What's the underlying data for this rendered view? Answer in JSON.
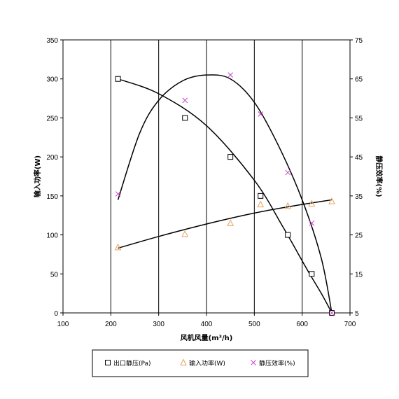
{
  "chart_data": {
    "type": "scatter",
    "x_axis": {
      "label": "风机风量(m³/h)",
      "min": 100,
      "max": 700,
      "ticks": [
        100,
        200,
        300,
        400,
        500,
        600,
        700
      ]
    },
    "y_left": {
      "label": "输入功率(W)",
      "min": 0,
      "max": 350,
      "ticks": [
        0,
        50,
        100,
        150,
        200,
        250,
        300,
        350
      ]
    },
    "y_right": {
      "label": "静压效率(%)",
      "min": 5,
      "max": 75,
      "ticks": [
        5,
        15,
        25,
        35,
        45,
        55,
        65,
        75
      ]
    },
    "grid": "vertical",
    "legend_placement": "bottom",
    "series": [
      {
        "name": "出口静压(Pa)",
        "axis": "left",
        "marker": "square",
        "color": "#000000",
        "points": [
          [
            215,
            300
          ],
          [
            355,
            250
          ],
          [
            450,
            200
          ],
          [
            513,
            150
          ],
          [
            570,
            100
          ],
          [
            620,
            50
          ],
          [
            662,
            0
          ]
        ],
        "curve": [
          [
            215,
            300
          ],
          [
            300,
            281
          ],
          [
            400,
            240
          ],
          [
            500,
            170
          ],
          [
            560,
            110
          ],
          [
            610,
            56
          ],
          [
            640,
            25
          ],
          [
            662,
            0
          ]
        ]
      },
      {
        "name": "输入功率(W)",
        "axis": "left",
        "marker": "triangle",
        "color": "#e8a060",
        "points": [
          [
            215,
            84
          ],
          [
            355,
            101
          ],
          [
            450,
            115
          ],
          [
            513,
            139
          ],
          [
            570,
            137
          ],
          [
            620,
            140
          ],
          [
            662,
            143
          ]
        ],
        "curve": [
          [
            215,
            83
          ],
          [
            300,
            98
          ],
          [
            400,
            114
          ],
          [
            500,
            128
          ],
          [
            580,
            137
          ],
          [
            662,
            145
          ]
        ]
      },
      {
        "name": "静压效率(%)",
        "axis": "right",
        "marker": "x",
        "color": "#cc44cc",
        "points": [
          [
            215,
            35.5
          ],
          [
            355,
            59.5
          ],
          [
            450,
            66
          ],
          [
            513,
            56
          ],
          [
            570,
            41
          ],
          [
            620,
            28
          ],
          [
            662,
            5
          ]
        ],
        "curve": [
          [
            215,
            34
          ],
          [
            260,
            51
          ],
          [
            300,
            59.5
          ],
          [
            350,
            64.5
          ],
          [
            400,
            66
          ],
          [
            450,
            65
          ],
          [
            500,
            59
          ],
          [
            550,
            48
          ],
          [
            600,
            34
          ],
          [
            640,
            19
          ],
          [
            662,
            5
          ]
        ]
      }
    ]
  },
  "legend": {
    "items": [
      {
        "label": "出口静压(Pa)",
        "marker": "square",
        "color": "#000000"
      },
      {
        "label": "输入功率(W)",
        "marker": "triangle",
        "color": "#e8a060"
      },
      {
        "label": "静压效率(%)",
        "marker": "x",
        "color": "#cc44cc"
      }
    ]
  }
}
